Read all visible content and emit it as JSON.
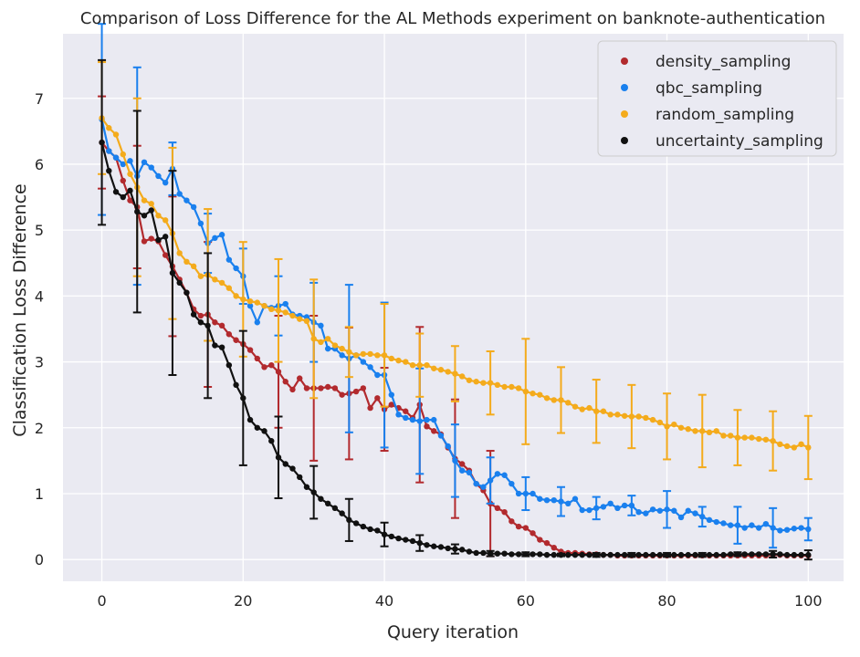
{
  "chart_data": {
    "type": "line",
    "title": "Comparison of Loss Difference for the AL Methods experiment on banknote-authentication",
    "xlabel": "Query iteration",
    "ylabel": "Classification Loss Difference",
    "xlim": [
      -5.5,
      105
    ],
    "ylim": [
      -0.33,
      7.98
    ],
    "x_ticks": [
      0,
      20,
      40,
      60,
      80,
      100
    ],
    "y_ticks": [
      0,
      1,
      2,
      3,
      4,
      5,
      6,
      7
    ],
    "x_tick_labels": [
      "0",
      "20",
      "40",
      "60",
      "80",
      "100"
    ],
    "y_tick_labels": [
      "0",
      "1",
      "2",
      "3",
      "4",
      "5",
      "6",
      "7"
    ],
    "grid": true,
    "background": "#EAEAF2",
    "legend_position": "top-right",
    "error_bar_every": 5,
    "series": [
      {
        "name": "density_sampling",
        "color": "#B22A2E",
        "values": [
          6.33,
          6.2,
          6.1,
          5.75,
          5.45,
          5.35,
          4.83,
          4.87,
          4.83,
          4.62,
          4.45,
          4.25,
          4.05,
          3.8,
          3.7,
          3.72,
          3.6,
          3.55,
          3.42,
          3.33,
          3.27,
          3.18,
          3.05,
          2.92,
          2.95,
          2.85,
          2.7,
          2.58,
          2.75,
          2.6,
          2.6,
          2.6,
          2.62,
          2.6,
          2.5,
          2.52,
          2.55,
          2.6,
          2.3,
          2.45,
          2.28,
          2.35,
          2.3,
          2.25,
          2.15,
          2.35,
          2.02,
          1.95,
          1.9,
          1.7,
          1.53,
          1.45,
          1.35,
          1.15,
          1.05,
          0.85,
          0.78,
          0.72,
          0.58,
          0.5,
          0.48,
          0.4,
          0.3,
          0.25,
          0.18,
          0.12,
          0.1,
          0.1,
          0.09,
          0.08,
          0.08,
          0.07,
          0.07,
          0.06,
          0.06,
          0.06,
          0.06,
          0.06,
          0.06,
          0.06,
          0.06,
          0.06,
          0.06,
          0.06,
          0.06,
          0.06,
          0.06,
          0.06,
          0.06,
          0.06,
          0.06,
          0.06,
          0.06,
          0.06,
          0.06,
          0.07,
          0.07,
          0.06,
          0.06,
          0.06,
          0.06
        ],
        "errors": {
          "0": 0.7,
          "5": 0.93,
          "10": 1.06,
          "15": 1.1,
          "20": 0,
          "25": 0.85,
          "30": 1.1,
          "35": 1.0,
          "40": 0.63,
          "45": 1.18,
          "50": 0.9,
          "55": 0.8,
          "60": 0,
          "65": 0,
          "70": 0,
          "75": 0,
          "80": 0,
          "85": 0,
          "90": 0,
          "95": 0,
          "100": 0
        }
      },
      {
        "name": "qbc_sampling",
        "color": "#1A80EE",
        "values": [
          6.68,
          6.2,
          6.1,
          6.0,
          6.05,
          5.82,
          6.03,
          5.95,
          5.82,
          5.72,
          5.93,
          5.55,
          5.45,
          5.35,
          5.1,
          4.8,
          4.88,
          4.93,
          4.55,
          4.42,
          4.3,
          3.85,
          3.6,
          3.85,
          3.82,
          3.85,
          3.88,
          3.72,
          3.7,
          3.68,
          3.6,
          3.55,
          3.2,
          3.2,
          3.1,
          3.05,
          3.1,
          3.0,
          2.92,
          2.8,
          2.8,
          2.5,
          2.2,
          2.15,
          2.12,
          2.1,
          2.12,
          2.12,
          1.88,
          1.72,
          1.5,
          1.35,
          1.32,
          1.15,
          1.1,
          1.2,
          1.3,
          1.28,
          1.15,
          1.0,
          1.0,
          1.0,
          0.92,
          0.9,
          0.9,
          0.88,
          0.85,
          0.92,
          0.75,
          0.75,
          0.78,
          0.8,
          0.85,
          0.78,
          0.82,
          0.82,
          0.72,
          0.7,
          0.76,
          0.74,
          0.76,
          0.74,
          0.64,
          0.74,
          0.7,
          0.65,
          0.6,
          0.57,
          0.55,
          0.52,
          0.52,
          0.48,
          0.52,
          0.48,
          0.54,
          0.48,
          0.44,
          0.45,
          0.47,
          0.48,
          0.46
        ],
        "errors": {
          "0": 1.45,
          "5": 1.65,
          "10": 0.4,
          "15": 0.45,
          "20": 0.42,
          "25": 0.45,
          "30": 0.6,
          "35": 1.12,
          "40": 1.1,
          "45": 0.8,
          "50": 0.55,
          "55": 0.35,
          "60": 0.25,
          "65": 0.22,
          "70": 0.17,
          "75": 0.15,
          "80": 0.28,
          "85": 0.15,
          "90": 0.28,
          "95": 0.3,
          "100": 0.17
        }
      },
      {
        "name": "random_sampling",
        "color": "#F4AB1C",
        "values": [
          6.7,
          6.55,
          6.45,
          6.15,
          5.85,
          5.65,
          5.45,
          5.4,
          5.22,
          5.15,
          4.95,
          4.65,
          4.52,
          4.45,
          4.3,
          4.32,
          4.25,
          4.2,
          4.12,
          4.0,
          3.95,
          3.92,
          3.9,
          3.85,
          3.8,
          3.78,
          3.75,
          3.7,
          3.65,
          3.62,
          3.35,
          3.3,
          3.35,
          3.25,
          3.2,
          3.15,
          3.1,
          3.12,
          3.12,
          3.1,
          3.1,
          3.05,
          3.02,
          3.0,
          2.95,
          2.95,
          2.95,
          2.9,
          2.88,
          2.85,
          2.82,
          2.78,
          2.72,
          2.7,
          2.68,
          2.68,
          2.65,
          2.62,
          2.62,
          2.6,
          2.55,
          2.52,
          2.5,
          2.45,
          2.42,
          2.42,
          2.38,
          2.32,
          2.28,
          2.3,
          2.25,
          2.25,
          2.2,
          2.2,
          2.18,
          2.17,
          2.17,
          2.15,
          2.12,
          2.08,
          2.02,
          2.05,
          2.0,
          1.98,
          1.95,
          1.95,
          1.93,
          1.95,
          1.88,
          1.88,
          1.85,
          1.85,
          1.85,
          1.83,
          1.82,
          1.8,
          1.75,
          1.72,
          1.7,
          1.75,
          1.7
        ],
        "errors": {
          "0": 0.85,
          "5": 1.35,
          "10": 1.3,
          "15": 1.0,
          "20": 0.87,
          "25": 0.78,
          "30": 0.9,
          "35": 0.38,
          "40": 0.78,
          "45": 0.48,
          "50": 0.42,
          "55": 0.48,
          "60": 0.8,
          "65": 0.5,
          "70": 0.48,
          "75": 0.48,
          "80": 0.5,
          "85": 0.55,
          "90": 0.42,
          "95": 0.45,
          "100": 0.48
        }
      },
      {
        "name": "uncertainty_sampling",
        "color": "#111111",
        "values": [
          6.33,
          5.9,
          5.58,
          5.5,
          5.6,
          5.28,
          5.22,
          5.3,
          4.85,
          4.9,
          4.35,
          4.2,
          4.05,
          3.72,
          3.6,
          3.55,
          3.25,
          3.22,
          2.95,
          2.65,
          2.45,
          2.12,
          2.0,
          1.95,
          1.8,
          1.55,
          1.45,
          1.38,
          1.25,
          1.1,
          1.02,
          0.92,
          0.85,
          0.78,
          0.7,
          0.6,
          0.55,
          0.5,
          0.46,
          0.44,
          0.38,
          0.35,
          0.32,
          0.3,
          0.28,
          0.25,
          0.22,
          0.2,
          0.19,
          0.17,
          0.16,
          0.15,
          0.12,
          0.1,
          0.1,
          0.09,
          0.09,
          0.09,
          0.08,
          0.08,
          0.08,
          0.08,
          0.08,
          0.07,
          0.07,
          0.07,
          0.07,
          0.07,
          0.07,
          0.07,
          0.07,
          0.07,
          0.07,
          0.07,
          0.07,
          0.07,
          0.07,
          0.07,
          0.07,
          0.07,
          0.07,
          0.07,
          0.07,
          0.07,
          0.07,
          0.07,
          0.07,
          0.07,
          0.07,
          0.08,
          0.08,
          0.08,
          0.08,
          0.08,
          0.08,
          0.08,
          0.08,
          0.07,
          0.07,
          0.07,
          0.07
        ],
        "errors": {
          "0": 1.25,
          "5": 1.53,
          "10": 1.55,
          "15": 1.1,
          "20": 1.02,
          "25": 0.62,
          "30": 0.4,
          "35": 0.32,
          "40": 0.18,
          "45": 0.12,
          "50": 0.07,
          "55": 0.04,
          "60": 0.03,
          "65": 0.02,
          "70": 0.03,
          "75": 0.03,
          "80": 0.03,
          "85": 0.03,
          "90": 0.03,
          "95": 0.05,
          "100": 0.07
        }
      }
    ]
  }
}
